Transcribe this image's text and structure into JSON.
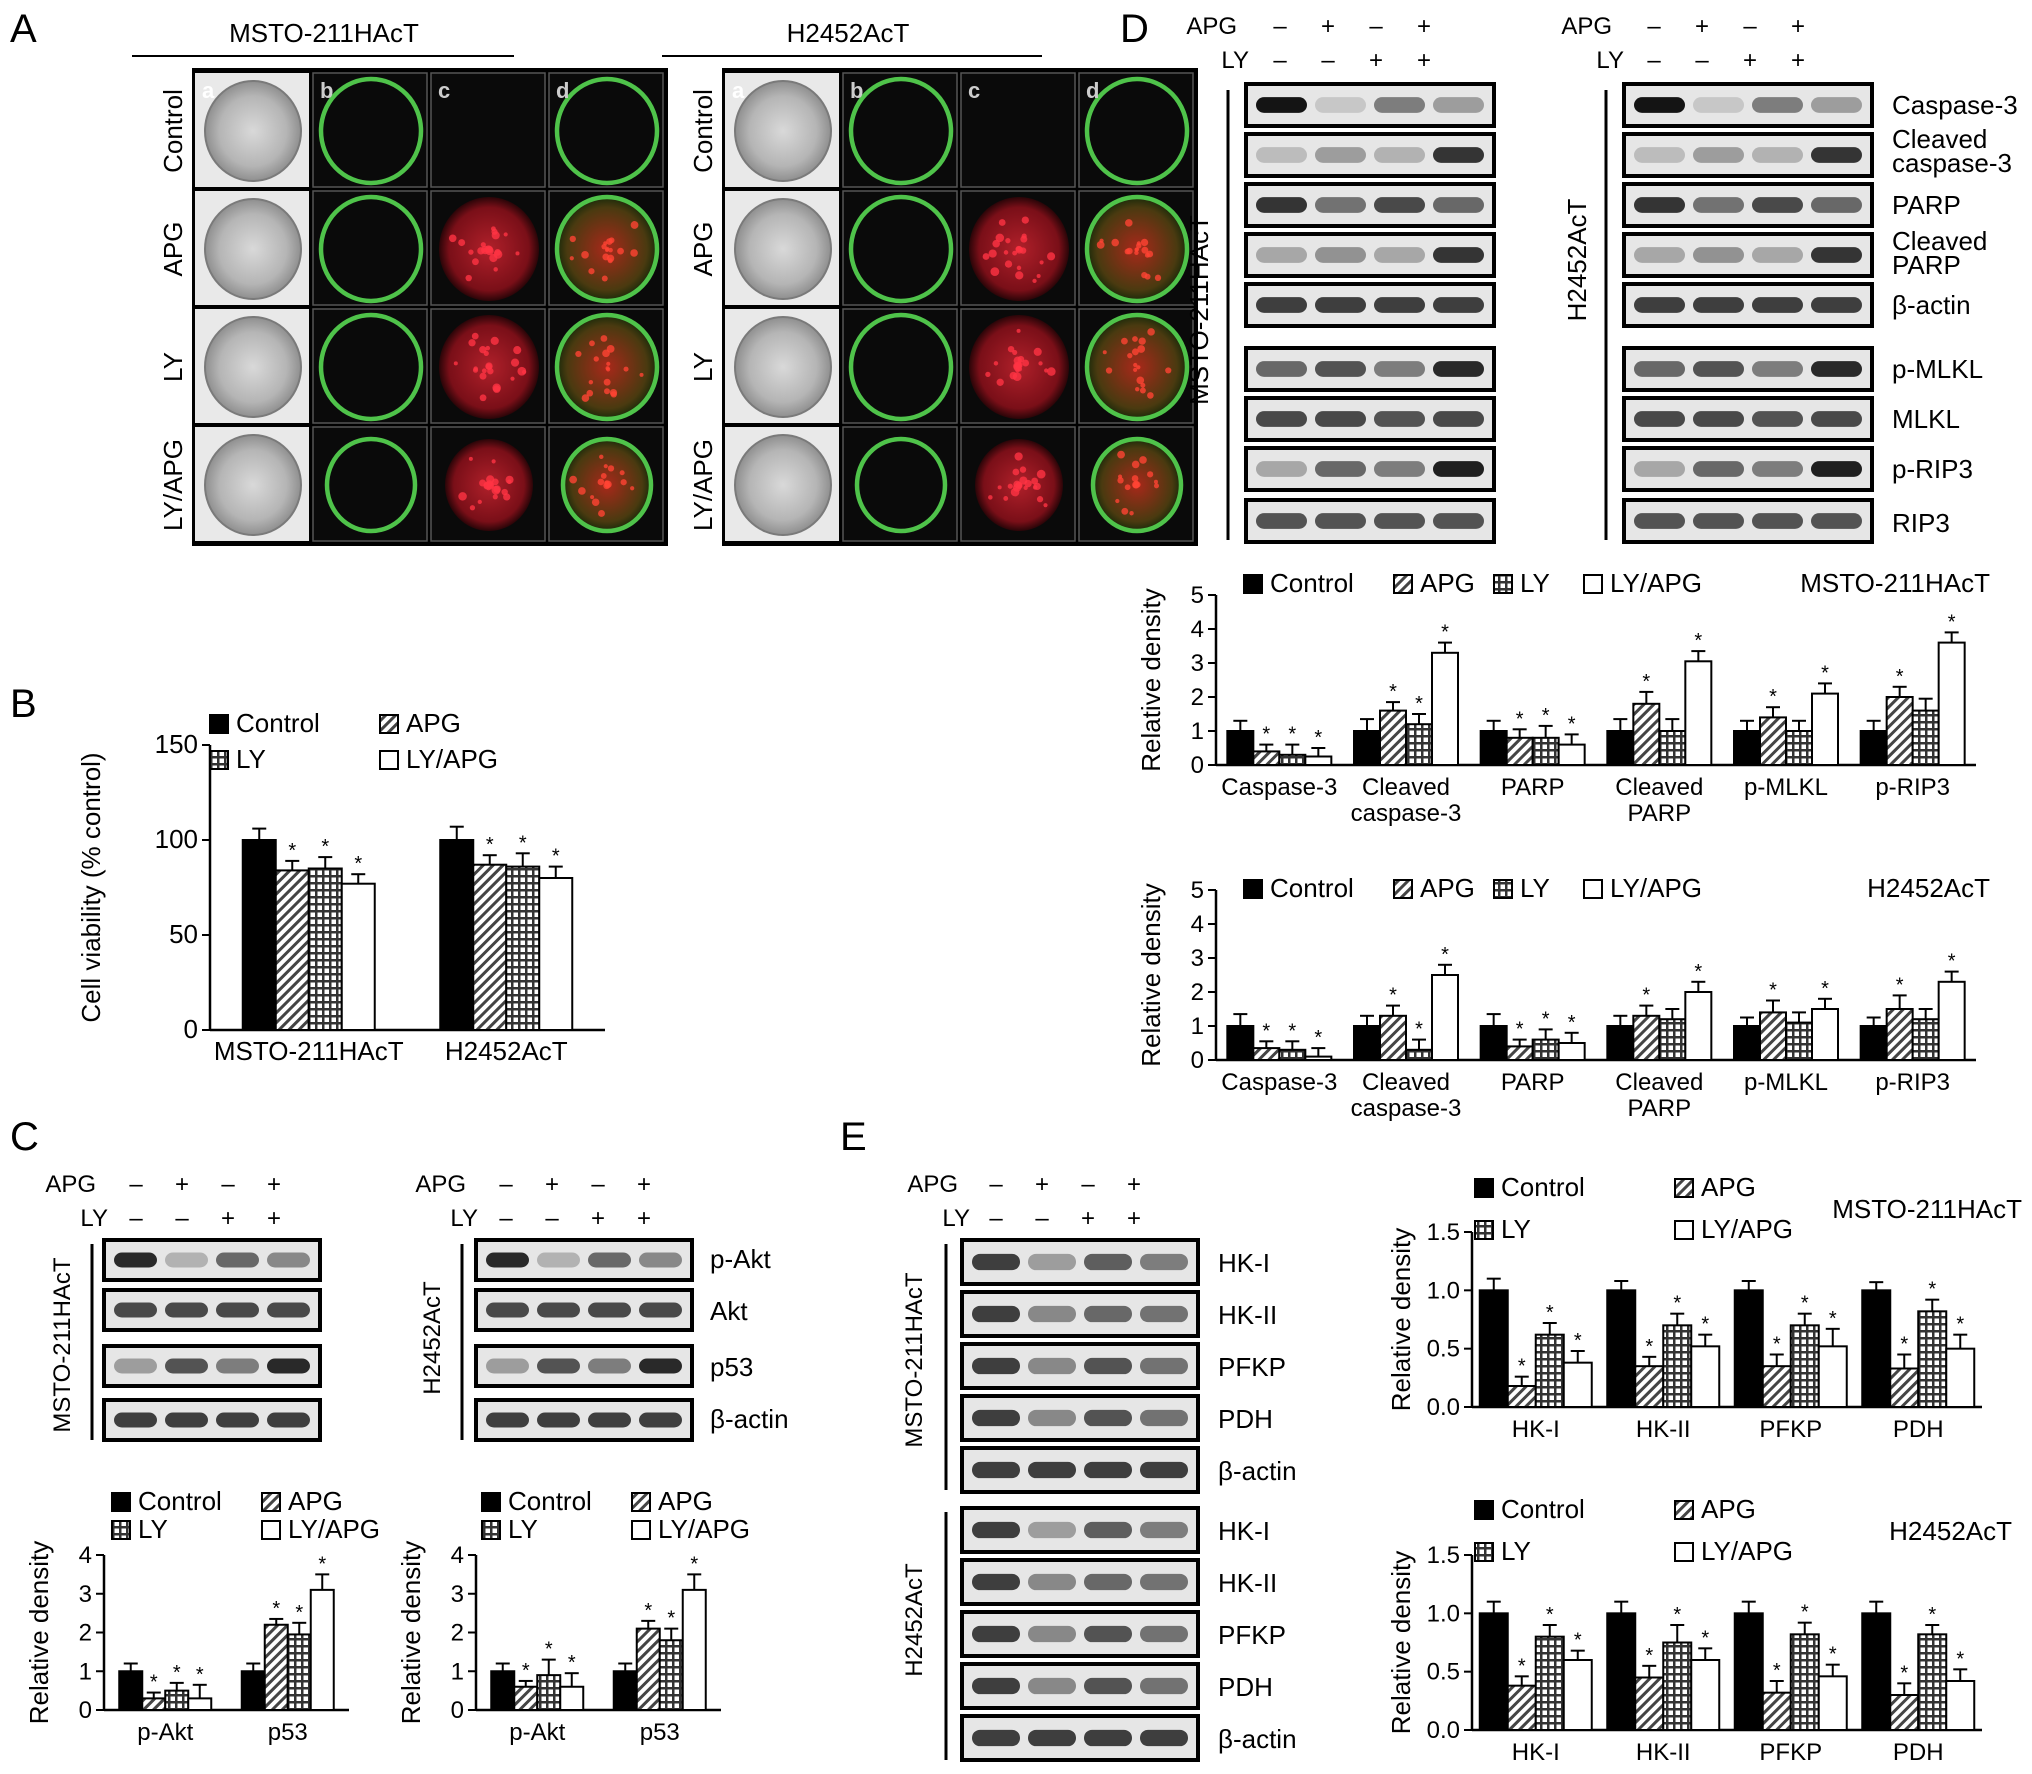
{
  "panels": {
    "A": "A",
    "B": "B",
    "C": "C",
    "D": "D",
    "E": "E"
  },
  "cell_lines": [
    "MSTO-211HAcT",
    "H2452AcT"
  ],
  "treatments": [
    "Control",
    "APG",
    "LY",
    "LY/APG"
  ],
  "micro_cols": [
    "a",
    "b",
    "c",
    "d"
  ],
  "treat_rows": {
    "apg_label": "APG",
    "ly_label": "LY",
    "apg": [
      "–",
      "+",
      "–",
      "+"
    ],
    "ly": [
      "–",
      "–",
      "+",
      "+"
    ]
  },
  "blots": {
    "D": [
      "Caspase-3",
      "Cleaved caspase-3",
      "PARP",
      "Cleaved PARP",
      "β-actin",
      "p-MLKL",
      "MLKL",
      "p-RIP3",
      "RIP3"
    ],
    "C": [
      "p-Akt",
      "Akt",
      "p53",
      "β-actin"
    ],
    "E_top": [
      "HK-I",
      "HK-II",
      "PFKP",
      "PDH",
      "β-actin"
    ],
    "E_bottom": [
      "HK-I",
      "HK-II",
      "PFKP",
      "PDH",
      "β-actin"
    ]
  },
  "colors": {
    "control": "#000000",
    "green": "#4fc34a",
    "red": "#c8202a",
    "gray": "#9a9a9a"
  },
  "chart_data": [
    {
      "id": "B",
      "type": "bar",
      "ylabel": "Cell viability (% control)",
      "ylim": [
        0,
        150
      ],
      "yticks": [
        0,
        50,
        100,
        150
      ],
      "categories": [
        "MSTO-211HAcT",
        "H2452AcT"
      ],
      "series": [
        {
          "name": "Control",
          "values": [
            100,
            100
          ],
          "err": [
            6,
            7
          ]
        },
        {
          "name": "APG",
          "values": [
            84,
            87
          ],
          "err": [
            5,
            5
          ]
        },
        {
          "name": "LY",
          "values": [
            85,
            86
          ],
          "err": [
            6,
            7
          ]
        },
        {
          "name": "LY/APG",
          "values": [
            77,
            80
          ],
          "err": [
            5,
            6
          ]
        }
      ],
      "star": [
        [
          false,
          true,
          true,
          true
        ],
        [
          false,
          true,
          true,
          true
        ]
      ],
      "legend_rows": [
        [
          "Control",
          "APG"
        ],
        [
          "LY",
          "LY/APG"
        ]
      ]
    },
    {
      "id": "C1",
      "type": "bar",
      "ylabel": "Relative density",
      "ylim": [
        0,
        4
      ],
      "yticks": [
        0,
        1,
        2,
        3,
        4
      ],
      "categories": [
        "p-Akt",
        "p53"
      ],
      "series": [
        {
          "name": "Control",
          "values": [
            1,
            1
          ],
          "err": [
            0.2,
            0.2
          ]
        },
        {
          "name": "APG",
          "values": [
            0.3,
            2.2
          ],
          "err": [
            0.15,
            0.15
          ]
        },
        {
          "name": "LY",
          "values": [
            0.5,
            1.95
          ],
          "err": [
            0.2,
            0.3
          ]
        },
        {
          "name": "LY/APG",
          "values": [
            0.3,
            3.1
          ],
          "err": [
            0.35,
            0.4
          ]
        }
      ],
      "star": [
        [
          false,
          true,
          true,
          true
        ],
        [
          false,
          true,
          true,
          true
        ]
      ],
      "legend_rows": [
        [
          "Control",
          "APG"
        ],
        [
          "LY",
          "LY/APG"
        ]
      ]
    },
    {
      "id": "C2",
      "type": "bar",
      "ylabel": "Relative density",
      "ylim": [
        0,
        4
      ],
      "yticks": [
        0,
        1,
        2,
        3,
        4
      ],
      "categories": [
        "p-Akt",
        "p53"
      ],
      "series": [
        {
          "name": "Control",
          "values": [
            1,
            1
          ],
          "err": [
            0.2,
            0.2
          ]
        },
        {
          "name": "APG",
          "values": [
            0.6,
            2.1
          ],
          "err": [
            0.15,
            0.2
          ]
        },
        {
          "name": "LY",
          "values": [
            0.9,
            1.8
          ],
          "err": [
            0.4,
            0.3
          ]
        },
        {
          "name": "LY/APG",
          "values": [
            0.6,
            3.1
          ],
          "err": [
            0.35,
            0.4
          ]
        }
      ],
      "star": [
        [
          false,
          true,
          true,
          true
        ],
        [
          false,
          true,
          true,
          true
        ]
      ],
      "legend_rows": [
        [
          "Control",
          "APG"
        ],
        [
          "LY",
          "LY/APG"
        ]
      ]
    },
    {
      "id": "D1",
      "type": "bar",
      "ylabel": "Relative density",
      "title": "MSTO-211HAcT",
      "ylim": [
        0,
        5
      ],
      "yticks": [
        0,
        1,
        2,
        3,
        4,
        5
      ],
      "categories": [
        "Caspase-3",
        "Cleaved caspase-3",
        "PARP",
        "Cleaved PARP",
        "p-MLKL",
        "p-RIP3"
      ],
      "series": [
        {
          "name": "Control",
          "values": [
            1,
            1,
            1,
            1,
            1,
            1
          ],
          "err": [
            0.3,
            0.35,
            0.3,
            0.35,
            0.3,
            0.3
          ]
        },
        {
          "name": "APG",
          "values": [
            0.4,
            1.6,
            0.8,
            1.8,
            1.4,
            2.0
          ],
          "err": [
            0.2,
            0.25,
            0.25,
            0.35,
            0.3,
            0.3
          ]
        },
        {
          "name": "LY",
          "values": [
            0.3,
            1.2,
            0.8,
            1.0,
            1.0,
            1.6
          ],
          "err": [
            0.3,
            0.3,
            0.35,
            0.35,
            0.3,
            0.35
          ]
        },
        {
          "name": "LY/APG",
          "values": [
            0.25,
            3.3,
            0.6,
            3.05,
            2.1,
            3.6
          ],
          "err": [
            0.25,
            0.3,
            0.3,
            0.3,
            0.3,
            0.3
          ]
        }
      ],
      "star": [
        [
          false,
          true,
          true,
          true
        ],
        [
          false,
          true,
          true,
          true
        ],
        [
          false,
          true,
          true,
          true
        ],
        [
          false,
          true,
          false,
          true
        ],
        [
          false,
          true,
          false,
          true
        ],
        [
          false,
          true,
          false,
          true
        ]
      ],
      "legend_rows": [
        [
          "Control",
          "APG",
          "LY",
          "LY/APG"
        ]
      ]
    },
    {
      "id": "D2",
      "type": "bar",
      "ylabel": "Relative density",
      "title": "H2452AcT",
      "ylim": [
        0,
        5
      ],
      "yticks": [
        0,
        1,
        2,
        3,
        4,
        5
      ],
      "categories": [
        "Caspase-3",
        "Cleaved caspase-3",
        "PARP",
        "Cleaved PARP",
        "p-MLKL",
        "p-RIP3"
      ],
      "series": [
        {
          "name": "Control",
          "values": [
            1,
            1,
            1,
            1,
            1,
            1
          ],
          "err": [
            0.35,
            0.3,
            0.35,
            0.3,
            0.25,
            0.25
          ]
        },
        {
          "name": "APG",
          "values": [
            0.35,
            1.3,
            0.4,
            1.3,
            1.4,
            1.5
          ],
          "err": [
            0.2,
            0.3,
            0.2,
            0.3,
            0.35,
            0.4
          ]
        },
        {
          "name": "LY",
          "values": [
            0.3,
            0.3,
            0.6,
            1.2,
            1.1,
            1.2
          ],
          "err": [
            0.25,
            0.3,
            0.3,
            0.3,
            0.3,
            0.3
          ]
        },
        {
          "name": "LY/APG",
          "values": [
            0.1,
            2.5,
            0.5,
            2.0,
            1.5,
            2.3
          ],
          "err": [
            0.25,
            0.3,
            0.3,
            0.3,
            0.3,
            0.3
          ]
        }
      ],
      "star": [
        [
          false,
          true,
          true,
          true
        ],
        [
          false,
          true,
          true,
          true
        ],
        [
          false,
          true,
          true,
          true
        ],
        [
          false,
          true,
          false,
          true
        ],
        [
          false,
          true,
          false,
          true
        ],
        [
          false,
          true,
          false,
          true
        ]
      ],
      "legend_rows": [
        [
          "Control",
          "APG",
          "LY",
          "LY/APG"
        ]
      ]
    },
    {
      "id": "E1",
      "type": "bar",
      "ylabel": "Relative density",
      "title": "MSTO-211HAcT",
      "ylim": [
        0,
        1.5
      ],
      "yticks": [
        0,
        0.5,
        1.0,
        1.5
      ],
      "categories": [
        "HK-I",
        "HK-II",
        "PFKP",
        "PDH"
      ],
      "series": [
        {
          "name": "Control",
          "values": [
            1.0,
            1.0,
            1.0,
            1.0
          ],
          "err": [
            0.1,
            0.08,
            0.08,
            0.07
          ]
        },
        {
          "name": "APG",
          "values": [
            0.18,
            0.35,
            0.35,
            0.33
          ],
          "err": [
            0.08,
            0.08,
            0.1,
            0.12
          ]
        },
        {
          "name": "LY",
          "values": [
            0.62,
            0.7,
            0.7,
            0.82
          ],
          "err": [
            0.1,
            0.1,
            0.1,
            0.1
          ]
        },
        {
          "name": "LY/APG",
          "values": [
            0.38,
            0.52,
            0.52,
            0.5
          ],
          "err": [
            0.1,
            0.1,
            0.15,
            0.12
          ]
        }
      ],
      "star": [
        [
          false,
          true,
          true,
          true
        ],
        [
          false,
          true,
          true,
          true
        ],
        [
          false,
          true,
          true,
          true
        ],
        [
          false,
          true,
          true,
          true
        ]
      ],
      "legend_rows": [
        [
          "Control",
          "APG"
        ],
        [
          "LY",
          "LY/APG"
        ]
      ]
    },
    {
      "id": "E2",
      "type": "bar",
      "ylabel": "Relative density",
      "title": "H2452AcT",
      "ylim": [
        0,
        1.5
      ],
      "yticks": [
        0,
        0.5,
        1.0,
        1.5
      ],
      "categories": [
        "HK-I",
        "HK-II",
        "PFKP",
        "PDH"
      ],
      "series": [
        {
          "name": "Control",
          "values": [
            1.0,
            1.0,
            1.0,
            1.0
          ],
          "err": [
            0.1,
            0.1,
            0.1,
            0.1
          ]
        },
        {
          "name": "APG",
          "values": [
            0.38,
            0.45,
            0.32,
            0.3
          ],
          "err": [
            0.08,
            0.1,
            0.1,
            0.1
          ]
        },
        {
          "name": "LY",
          "values": [
            0.8,
            0.75,
            0.82,
            0.82
          ],
          "err": [
            0.1,
            0.15,
            0.1,
            0.08
          ]
        },
        {
          "name": "LY/APG",
          "values": [
            0.6,
            0.6,
            0.46,
            0.42
          ],
          "err": [
            0.08,
            0.1,
            0.1,
            0.1
          ]
        }
      ],
      "star": [
        [
          false,
          true,
          true,
          true
        ],
        [
          false,
          true,
          true,
          true
        ],
        [
          false,
          true,
          true,
          true
        ],
        [
          false,
          true,
          true,
          true
        ]
      ],
      "legend_rows": [
        [
          "Control",
          "APG"
        ],
        [
          "LY",
          "LY/APG"
        ]
      ]
    }
  ]
}
